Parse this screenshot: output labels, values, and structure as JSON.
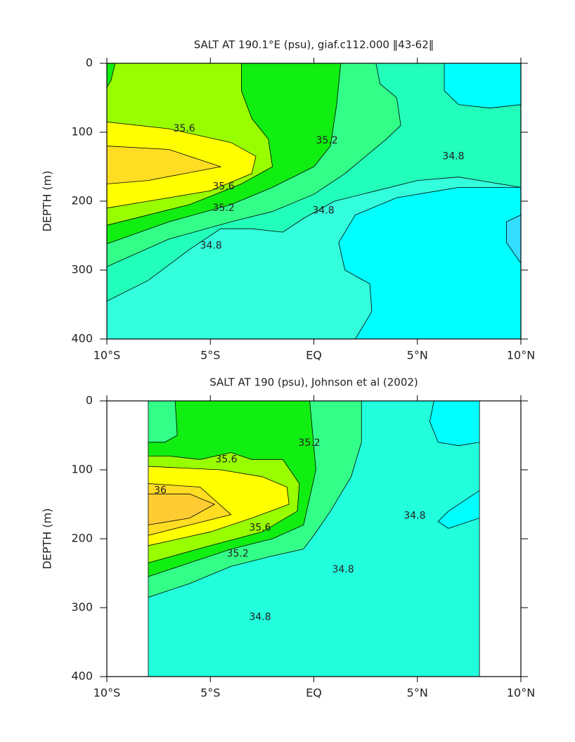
{
  "chart_data": [
    {
      "type": "contour",
      "title": "SALT AT 190.1°E (psu), giaf.c112.000 ‖43-62‖",
      "ylabel": "DEPTH (m)",
      "xlim": [
        -10,
        10
      ],
      "ylim": [
        400,
        0
      ],
      "xticks": [
        {
          "value": -10,
          "label": "10°S"
        },
        {
          "value": -5,
          "label": "5°S"
        },
        {
          "value": 0,
          "label": "EQ"
        },
        {
          "value": 5,
          "label": "5°N"
        },
        {
          "value": 10,
          "label": "10°N"
        }
      ],
      "yticks": [
        0,
        100,
        200,
        300,
        400
      ],
      "regions": [
        {
          "level": 34.6,
          "color": "#33ffdd",
          "points": [
            [
              -10,
              0
            ],
            [
              10,
              0
            ],
            [
              10,
              400
            ],
            [
              -10,
              400
            ]
          ]
        },
        {
          "level": 34.8,
          "color": "#22ffbb",
          "points": [
            [
              -10,
              345
            ],
            [
              -8,
              315
            ],
            [
              -6,
              270
            ],
            [
              -4.5,
              240
            ],
            [
              -3,
              240
            ],
            [
              -1.5,
              245
            ],
            [
              -0.5,
              225
            ],
            [
              1,
              200
            ],
            [
              3,
              185
            ],
            [
              5,
              170
            ],
            [
              7,
              165
            ],
            [
              10,
              180
            ],
            [
              10,
              0
            ],
            [
              -10,
              0
            ]
          ]
        },
        {
          "level": 35.0,
          "color": "#33ff88",
          "points": [
            [
              -10,
              295
            ],
            [
              -7,
              255
            ],
            [
              -4,
              230
            ],
            [
              -2,
              215
            ],
            [
              0,
              190
            ],
            [
              1.5,
              160
            ],
            [
              3.5,
              110
            ],
            [
              4.2,
              90
            ],
            [
              4,
              50
            ],
            [
              3.2,
              30
            ],
            [
              3,
              0
            ],
            [
              -10,
              0
            ]
          ]
        },
        {
          "level": 35.2,
          "color": "#11ee11",
          "points": [
            [
              -10,
              262
            ],
            [
              -7,
              230
            ],
            [
              -4,
              205
            ],
            [
              -2,
              180
            ],
            [
              0,
              150
            ],
            [
              0.8,
              120
            ],
            [
              1.1,
              60
            ],
            [
              1.3,
              0
            ],
            [
              -10,
              0
            ]
          ]
        },
        {
          "level": 35.4,
          "color": "#99ff00",
          "points": [
            [
              -10,
              235
            ],
            [
              -6,
              205
            ],
            [
              -3.5,
              175
            ],
            [
              -2,
              150
            ],
            [
              -2.2,
              110
            ],
            [
              -3,
              80
            ],
            [
              -3.5,
              40
            ],
            [
              -3.5,
              0
            ],
            [
              -9.6,
              0
            ],
            [
              -9.8,
              25
            ],
            [
              -10,
              35
            ]
          ]
        },
        {
          "level": 35.6,
          "color": "#ffff00",
          "points": [
            [
              -10,
              210
            ],
            [
              -8,
              200
            ],
            [
              -5,
              185
            ],
            [
              -3,
              160
            ],
            [
              -2.8,
              135
            ],
            [
              -4,
              115
            ],
            [
              -7,
              95
            ],
            [
              -10,
              85
            ]
          ]
        },
        {
          "level": 35.8,
          "color": "#ffdd22",
          "points": [
            [
              -10,
              175
            ],
            [
              -8,
              170
            ],
            [
              -4.5,
              150
            ],
            [
              -7,
              125
            ],
            [
              -10,
              120
            ]
          ]
        },
        {
          "level": 34.4,
          "color": "#00ffff",
          "points": [
            [
              2,
              400
            ],
            [
              2.8,
              360
            ],
            [
              2.7,
              320
            ],
            [
              1.5,
              300
            ],
            [
              1.2,
              260
            ],
            [
              2,
              220
            ],
            [
              4,
              195
            ],
            [
              7,
              180
            ],
            [
              10,
              180
            ],
            [
              10,
              400
            ]
          ]
        },
        {
          "level": 34.4,
          "color": "#00ffff",
          "points": [
            [
              10,
              60
            ],
            [
              8.5,
              65
            ],
            [
              7,
              60
            ],
            [
              6.3,
              40
            ],
            [
              6.3,
              0
            ],
            [
              10,
              0
            ]
          ]
        },
        {
          "level": 34.2,
          "color": "#33ddff",
          "points": [
            [
              10,
              220
            ],
            [
              9.3,
              230
            ],
            [
              9.3,
              260
            ],
            [
              10,
              290
            ]
          ]
        }
      ],
      "contour_labels": [
        {
          "value": 35.6,
          "x": -6.26,
          "depth": 95
        },
        {
          "value": 35.6,
          "x": -4.36,
          "depth": 179
        },
        {
          "value": 35.2,
          "x": -4.36,
          "depth": 210
        },
        {
          "value": 35.2,
          "x": 0.63,
          "depth": 112
        },
        {
          "value": 34.8,
          "x": 0.46,
          "depth": 214
        },
        {
          "value": 34.8,
          "x": -4.97,
          "depth": 265
        },
        {
          "value": 34.8,
          "x": 6.74,
          "depth": 135
        }
      ]
    },
    {
      "type": "contour",
      "title": "SALT AT 190 (psu), Johnson et al (2002)",
      "ylabel": "DEPTH (m)",
      "xlim": [
        -10,
        10
      ],
      "ylim": [
        400,
        0
      ],
      "xticks": [
        {
          "value": -10,
          "label": "10°S"
        },
        {
          "value": -5,
          "label": "5°S"
        },
        {
          "value": 0,
          "label": "EQ"
        },
        {
          "value": 5,
          "label": "5°N"
        },
        {
          "value": 10,
          "label": "10°N"
        }
      ],
      "yticks": [
        0,
        100,
        200,
        300,
        400
      ],
      "regions": [
        {
          "level": 34.6,
          "color": "#22ffdd",
          "points": [
            [
              -8,
              0
            ],
            [
              8,
              0
            ],
            [
              8,
              400
            ],
            [
              -8,
              400
            ]
          ]
        },
        {
          "level": 35.0,
          "color": "#33ff88",
          "points": [
            [
              2.3,
              0
            ],
            [
              2.3,
              60
            ],
            [
              1.8,
              110
            ],
            [
              0.8,
              160
            ],
            [
              0,
              195
            ],
            [
              -0.5,
              215
            ],
            [
              -2,
              225
            ],
            [
              -4,
              240
            ],
            [
              -6,
              265
            ],
            [
              -8,
              285
            ],
            [
              -8,
              0
            ]
          ]
        },
        {
          "level": 35.2,
          "color": "#11ee11",
          "points": [
            [
              -8,
              255
            ],
            [
              -6,
              235
            ],
            [
              -4,
              215
            ],
            [
              -2,
              200
            ],
            [
              -0.5,
              180
            ],
            [
              0.1,
              100
            ],
            [
              -0.2,
              0
            ],
            [
              -6.7,
              0
            ],
            [
              -6.6,
              50
            ],
            [
              -7.2,
              60
            ],
            [
              -8,
              60
            ]
          ]
        },
        {
          "level": 35.4,
          "color": "#99ff00",
          "points": [
            [
              -8,
              235
            ],
            [
              -5,
              210
            ],
            [
              -2.5,
              190
            ],
            [
              -0.8,
              160
            ],
            [
              -0.7,
              120
            ],
            [
              -1.5,
              85
            ],
            [
              -3,
              85
            ],
            [
              -4,
              75
            ],
            [
              -5.5,
              85
            ],
            [
              -7,
              80
            ],
            [
              -8,
              80
            ]
          ]
        },
        {
          "level": 35.6,
          "color": "#ffff00",
          "points": [
            [
              -8,
              210
            ],
            [
              -5,
              190
            ],
            [
              -3,
              170
            ],
            [
              -1.2,
              150
            ],
            [
              -1.3,
              125
            ],
            [
              -2.5,
              110
            ],
            [
              -4.5,
              100
            ],
            [
              -8,
              95
            ]
          ]
        },
        {
          "level": 35.8,
          "color": "#ffdd22",
          "points": [
            [
              -8,
              195
            ],
            [
              -6,
              180
            ],
            [
              -4,
              165
            ],
            [
              -5.5,
              125
            ],
            [
              -8,
              120
            ]
          ]
        },
        {
          "level": 36,
          "color": "#ffcc33",
          "points": [
            [
              -8,
              180
            ],
            [
              -6,
              170
            ],
            [
              -4.8,
              150
            ],
            [
              -6,
              135
            ],
            [
              -8,
              135
            ]
          ]
        },
        {
          "level": 34.4,
          "color": "#00ffff",
          "points": [
            [
              5.8,
              0
            ],
            [
              5.6,
              30
            ],
            [
              6,
              60
            ],
            [
              7,
              65
            ],
            [
              8,
              60
            ],
            [
              8,
              0
            ]
          ]
        },
        {
          "level": 34.4,
          "color": "#00ffff",
          "points": [
            [
              8,
              130
            ],
            [
              6.5,
              160
            ],
            [
              6,
              175
            ],
            [
              6.5,
              185
            ],
            [
              8,
              170
            ]
          ]
        }
      ],
      "contour_labels": [
        {
          "value": 35.2,
          "x": -0.22,
          "depth": 61
        },
        {
          "value": 35.6,
          "x": -4.23,
          "depth": 85
        },
        {
          "value": 36,
          "x": -7.42,
          "depth": 130
        },
        {
          "value": 35.6,
          "x": -2.6,
          "depth": 184
        },
        {
          "value": 35.2,
          "x": -3.68,
          "depth": 222
        },
        {
          "value": 34.8,
          "x": -2.6,
          "depth": 314
        },
        {
          "value": 34.8,
          "x": 1.41,
          "depth": 245
        },
        {
          "value": 34.8,
          "x": 4.87,
          "depth": 167
        }
      ]
    }
  ]
}
